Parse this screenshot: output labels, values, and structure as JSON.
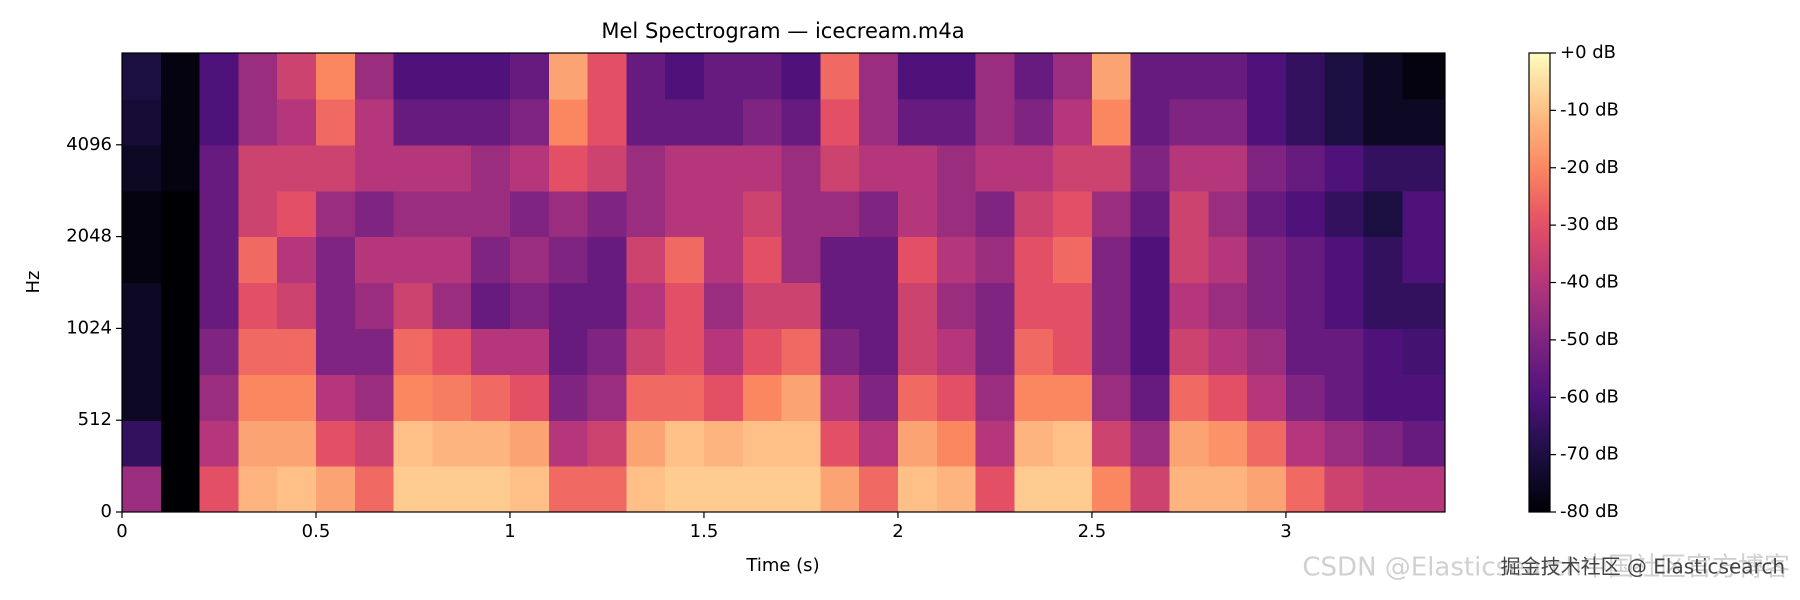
{
  "chart_data": {
    "type": "heatmap",
    "title": "Mel Spectrogram — icecream.m4a",
    "x_label": "Time (s)",
    "y_label": "Hz",
    "x": [
      0,
      0.1,
      0.2,
      0.3,
      0.4,
      0.5,
      0.6,
      0.7,
      0.8,
      0.9,
      1.0,
      1.1,
      1.2,
      1.3,
      1.4,
      1.5,
      1.6,
      1.7,
      1.8,
      1.9,
      2.0,
      2.1,
      2.2,
      2.3,
      2.4,
      2.5,
      2.6,
      2.7,
      2.8,
      2.9,
      3.0,
      3.1,
      3.2,
      3.3,
      3.41
    ],
    "y": [
      0,
      256,
      512,
      724,
      1024,
      1448,
      2048,
      2896,
      4096,
      5793,
      8192
    ],
    "z": [
      [
        -45,
        -80,
        -30,
        -12,
        -10,
        -15,
        -25,
        -8,
        -8,
        -8,
        -10,
        -25,
        -25,
        -10,
        -8,
        -8,
        -8,
        -8,
        -15,
        -25,
        -10,
        -12,
        -30,
        -8,
        -8,
        -20,
        -35,
        -12,
        -12,
        -15,
        -25,
        -35,
        -40,
        -40
      ],
      [
        -65,
        -80,
        -40,
        -15,
        -15,
        -30,
        -35,
        -10,
        -12,
        -12,
        -15,
        -40,
        -35,
        -15,
        -10,
        -12,
        -10,
        -10,
        -30,
        -40,
        -15,
        -20,
        -40,
        -12,
        -10,
        -35,
        -45,
        -15,
        -18,
        -25,
        -40,
        -45,
        -50,
        -55
      ],
      [
        -75,
        -80,
        -45,
        -20,
        -20,
        -40,
        -45,
        -20,
        -22,
        -25,
        -30,
        -50,
        -45,
        -25,
        -25,
        -30,
        -20,
        -15,
        -40,
        -50,
        -25,
        -30,
        -45,
        -20,
        -20,
        -45,
        -55,
        -25,
        -30,
        -40,
        -50,
        -55,
        -60,
        -60
      ],
      [
        -75,
        -80,
        -50,
        -25,
        -25,
        -50,
        -50,
        -25,
        -30,
        -40,
        -40,
        -55,
        -50,
        -35,
        -30,
        -40,
        -30,
        -25,
        -50,
        -55,
        -35,
        -40,
        -50,
        -25,
        -30,
        -50,
        -60,
        -35,
        -40,
        -45,
        -55,
        -55,
        -60,
        -62
      ],
      [
        -75,
        -80,
        -55,
        -30,
        -35,
        -50,
        -45,
        -35,
        -45,
        -55,
        -50,
        -55,
        -55,
        -40,
        -30,
        -45,
        -35,
        -35,
        -55,
        -55,
        -35,
        -45,
        -50,
        -30,
        -30,
        -50,
        -60,
        -40,
        -45,
        -50,
        -55,
        -60,
        -65,
        -65
      ],
      [
        -78,
        -80,
        -55,
        -25,
        -40,
        -50,
        -40,
        -40,
        -40,
        -50,
        -45,
        -50,
        -55,
        -35,
        -25,
        -40,
        -30,
        -45,
        -55,
        -55,
        -30,
        -40,
        -45,
        -30,
        -25,
        -50,
        -60,
        -35,
        -40,
        -50,
        -55,
        -60,
        -65,
        -60
      ],
      [
        -78,
        -80,
        -55,
        -35,
        -30,
        -45,
        -50,
        -45,
        -45,
        -45,
        -50,
        -45,
        -50,
        -45,
        -40,
        -40,
        -35,
        -45,
        -45,
        -50,
        -40,
        -45,
        -50,
        -35,
        -30,
        -45,
        -55,
        -35,
        -45,
        -55,
        -60,
        -65,
        -70,
        -60
      ],
      [
        -75,
        -78,
        -55,
        -35,
        -35,
        -35,
        -40,
        -40,
        -40,
        -45,
        -40,
        -30,
        -35,
        -45,
        -40,
        -40,
        -40,
        -45,
        -35,
        -40,
        -40,
        -45,
        -40,
        -40,
        -35,
        -35,
        -50,
        -40,
        -40,
        -50,
        -55,
        -60,
        -65,
        -65
      ],
      [
        -72,
        -78,
        -60,
        -45,
        -40,
        -25,
        -40,
        -55,
        -55,
        -55,
        -50,
        -20,
        -30,
        -55,
        -55,
        -55,
        -50,
        -55,
        -30,
        -45,
        -55,
        -55,
        -45,
        -50,
        -40,
        -20,
        -55,
        -50,
        -50,
        -60,
        -65,
        -70,
        -75,
        -75
      ],
      [
        -70,
        -78,
        -60,
        -45,
        -35,
        -20,
        -45,
        -60,
        -60,
        -60,
        -55,
        -15,
        -30,
        -55,
        -60,
        -55,
        -55,
        -60,
        -25,
        -45,
        -60,
        -60,
        -45,
        -55,
        -45,
        -15,
        -55,
        -55,
        -55,
        -60,
        -65,
        -70,
        -75,
        -78
      ]
    ],
    "xlim": [
      0,
      3.41
    ],
    "ylim": [
      0,
      8192
    ],
    "xticks": [
      0,
      0.5,
      1,
      1.5,
      2,
      2.5,
      3
    ],
    "yticks": [
      0,
      512,
      1024,
      2048,
      4096
    ],
    "yscale": "symlog",
    "linthresh": 512,
    "colormap": "magma",
    "clim": [
      -80,
      0
    ],
    "cticks": [
      {
        "value": 0,
        "label": "+0 dB"
      },
      {
        "value": -10,
        "label": "-10 dB"
      },
      {
        "value": -20,
        "label": "-20 dB"
      },
      {
        "value": -30,
        "label": "-30 dB"
      },
      {
        "value": -40,
        "label": "-40 dB"
      },
      {
        "value": -50,
        "label": "-50 dB"
      },
      {
        "value": -60,
        "label": "-60 dB"
      },
      {
        "value": -70,
        "label": "-70 dB"
      },
      {
        "value": -80,
        "label": "-80 dB"
      }
    ]
  },
  "watermark": {
    "back": "CSDN @Elasticsearch中国社区官方博客",
    "front": "掘金技术社区 @ Elasticsearch"
  }
}
